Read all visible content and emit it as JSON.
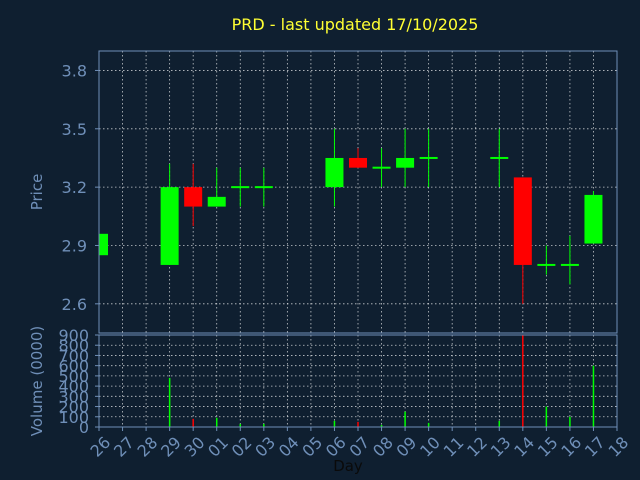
{
  "chart_data": {
    "type": "candlestick",
    "title": "PRD - last updated 17/10/2025",
    "ylabel": "Price",
    "volume_label": "Volume (0000)",
    "xlabel": "Day",
    "ylim": [
      2.45,
      3.9
    ],
    "yticks": [
      "2.6",
      "2.9",
      "3.2",
      "3.5",
      "3.8"
    ],
    "volume_ylim": [
      0,
      900
    ],
    "volume_ticks": [
      "0",
      "100",
      "200",
      "300",
      "400",
      "500",
      "600",
      "700",
      "800",
      "900"
    ],
    "x_labels": [
      "26",
      "27",
      "28",
      "29",
      "30",
      "01",
      "02",
      "03",
      "04",
      "05",
      "06",
      "07",
      "08",
      "09",
      "10",
      "11",
      "12",
      "13",
      "14",
      "15",
      "16",
      "17",
      "18"
    ],
    "colors": {
      "up": "#00ff00",
      "down": "#ff0000",
      "grid": "#ffffff",
      "axes": "#6f8fb8",
      "background": "#0f1f30",
      "title": "#ffff33"
    },
    "candles": [
      {
        "day": "26",
        "open": 2.85,
        "high": 2.96,
        "low": 2.85,
        "close": 2.96,
        "volume": 0
      },
      {
        "day": "29",
        "open": 2.8,
        "high": 3.32,
        "low": 2.8,
        "close": 3.2,
        "volume": 480
      },
      {
        "day": "30",
        "open": 3.2,
        "high": 3.32,
        "low": 3.0,
        "close": 3.1,
        "volume": 80
      },
      {
        "day": "01",
        "open": 3.1,
        "high": 3.3,
        "low": 3.1,
        "close": 3.15,
        "volume": 90
      },
      {
        "day": "02",
        "open": 3.2,
        "high": 3.3,
        "low": 3.1,
        "close": 3.2,
        "volume": 30
      },
      {
        "day": "03",
        "open": 3.2,
        "high": 3.3,
        "low": 3.1,
        "close": 3.2,
        "volume": 30
      },
      {
        "day": "06",
        "open": 3.2,
        "high": 3.5,
        "low": 3.1,
        "close": 3.35,
        "volume": 60
      },
      {
        "day": "07",
        "open": 3.35,
        "high": 3.4,
        "low": 3.3,
        "close": 3.3,
        "volume": 50
      },
      {
        "day": "08",
        "open": 3.3,
        "high": 3.4,
        "low": 3.2,
        "close": 3.3,
        "volume": 20
      },
      {
        "day": "09",
        "open": 3.3,
        "high": 3.5,
        "low": 3.2,
        "close": 3.35,
        "volume": 150
      },
      {
        "day": "10",
        "open": 3.35,
        "high": 3.5,
        "low": 3.2,
        "close": 3.35,
        "volume": 40
      },
      {
        "day": "13",
        "open": 3.35,
        "high": 3.5,
        "low": 3.2,
        "close": 3.35,
        "volume": 60
      },
      {
        "day": "14",
        "open": 3.25,
        "high": 3.25,
        "low": 2.6,
        "close": 2.8,
        "volume": 900
      },
      {
        "day": "15",
        "open": 2.8,
        "high": 2.9,
        "low": 2.75,
        "close": 2.8,
        "volume": 200
      },
      {
        "day": "16",
        "open": 2.8,
        "high": 2.95,
        "low": 2.7,
        "close": 2.8,
        "volume": 100
      },
      {
        "day": "17",
        "open": 2.91,
        "high": 3.18,
        "low": 2.91,
        "close": 3.16,
        "volume": 600
      }
    ]
  }
}
